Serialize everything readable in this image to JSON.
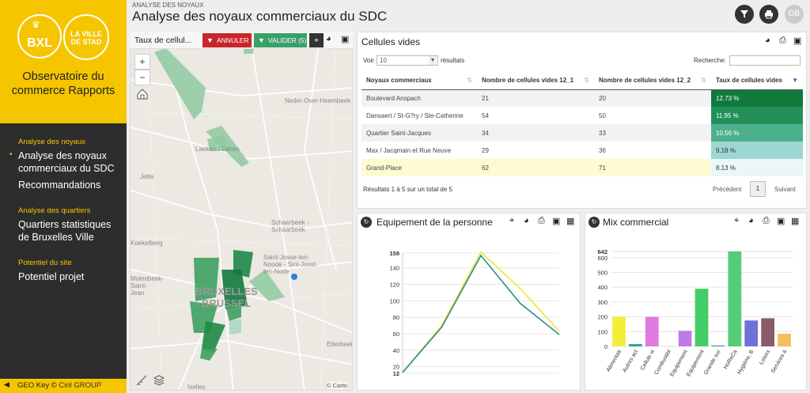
{
  "sidebar": {
    "brand": "BXL",
    "ville": "LA VILLE DE STAD",
    "title": "Observatoire du commerce Rapports",
    "sections": [
      {
        "label": "Analyse des noyaux"
      },
      {
        "label": "Analyse des quartiers"
      },
      {
        "label": "Potentiel du site"
      }
    ],
    "items": [
      {
        "label": "Analyse des noyaux commerciaux du SDC"
      },
      {
        "label": "Recommandations"
      },
      {
        "label": "Quartiers statistiques de Bruxelles Ville"
      },
      {
        "label": "Potentiel projet"
      }
    ],
    "footer_geo": "GEO Key",
    "footer_copy": "©",
    "footer_ciril": "Ciril GROUP"
  },
  "header": {
    "breadcrumb": "ANALYSE DES NOYAUX",
    "title": "Analyse des noyaux commerciaux du SDC",
    "user": "DB"
  },
  "map": {
    "layer_label": "Taux de cellul...",
    "cancel": "ANNULER",
    "validate": "VALIDER (5)",
    "zoom_in": "+",
    "zoom_out": "−",
    "attribution": "© Carto",
    "labels": [
      "Neder-Over-Heembeek",
      "Laeken - Laken",
      "Jette",
      "Schaerbeek - Schaarbeek",
      "Koekelberg",
      "Molenbeek-Saint-Jean",
      "Saint-Josse-ten-Noode - Sint-Joost-ten-Node",
      "BRUXELLES - BRUSSEL",
      "Etterbeek",
      "Ixelles"
    ]
  },
  "table": {
    "title": "Cellules vides",
    "show_label": "Voir",
    "page_size": "10",
    "results_label": "résultats",
    "search_label": "Recherche:",
    "columns": [
      "Noyaux commerciaux",
      "Nombre de cellules vides 12_1",
      "Nombre de cellules vides 12_2",
      "Taux de cellules vides"
    ],
    "rows": [
      [
        "Boulevard Anspach",
        "21",
        "20",
        "12.73 %"
      ],
      [
        "Dansaert / St-G?ry / Ste-Catherine",
        "54",
        "50",
        "11.95 %"
      ],
      [
        "Quartier Saint-Jacques",
        "34",
        "33",
        "10.56 %"
      ],
      [
        "Max / Jacqmain et Rue Neuve",
        "29",
        "36",
        "9.18 %"
      ],
      [
        "Grand-Place",
        "62",
        "71",
        "8.13 %"
      ]
    ],
    "row_colors": [
      "#0f7a3c",
      "#23905a",
      "#4cb08f",
      "#9ed6d2",
      "#eaf6f8"
    ],
    "info": "Résultats 1 à 5 sur un total de 5",
    "prev": "Précédent",
    "page": "1",
    "next": "Suivant"
  },
  "chart_line_title": "Equipement de la personne",
  "chart_bar_title": "Mix commercial",
  "chart_data": [
    {
      "type": "line",
      "title": "Equipement de la personne",
      "ylim": [
        12,
        158
      ],
      "yticks": [
        "158",
        "140",
        "120",
        "100",
        "80",
        "60",
        "40",
        "20",
        "12"
      ],
      "series": [
        {
          "color": "#f2e33a",
          "values": [
            13,
            70,
            159,
            115,
            63
          ]
        },
        {
          "color": "#2a8e8e",
          "values": [
            13,
            68,
            155,
            97,
            59
          ]
        }
      ]
    },
    {
      "type": "bar",
      "title": "Mix commercial",
      "ylim": [
        0,
        642
      ],
      "yticks": [
        "642",
        "600",
        "500",
        "400",
        "300",
        "200",
        "100",
        "0"
      ],
      "categories": [
        "Alimentati",
        "Autres act",
        "Cellule vi",
        "Combustibl",
        "Equipement",
        "Equipement",
        "Grande sur",
        "HoReCa",
        "Hygiène, B",
        "Loisirs",
        "Services à"
      ],
      "values": [
        200,
        15,
        200,
        0,
        105,
        390,
        5,
        642,
        175,
        190,
        85
      ],
      "colors": [
        "#f2ee3a",
        "#2a9a9a",
        "#e07ae0",
        "#cccccc",
        "#c07ae8",
        "#44cc66",
        "#2a8e8e",
        "#55cc77",
        "#7070d8",
        "#8a5a6a",
        "#f2c05a"
      ]
    }
  ]
}
